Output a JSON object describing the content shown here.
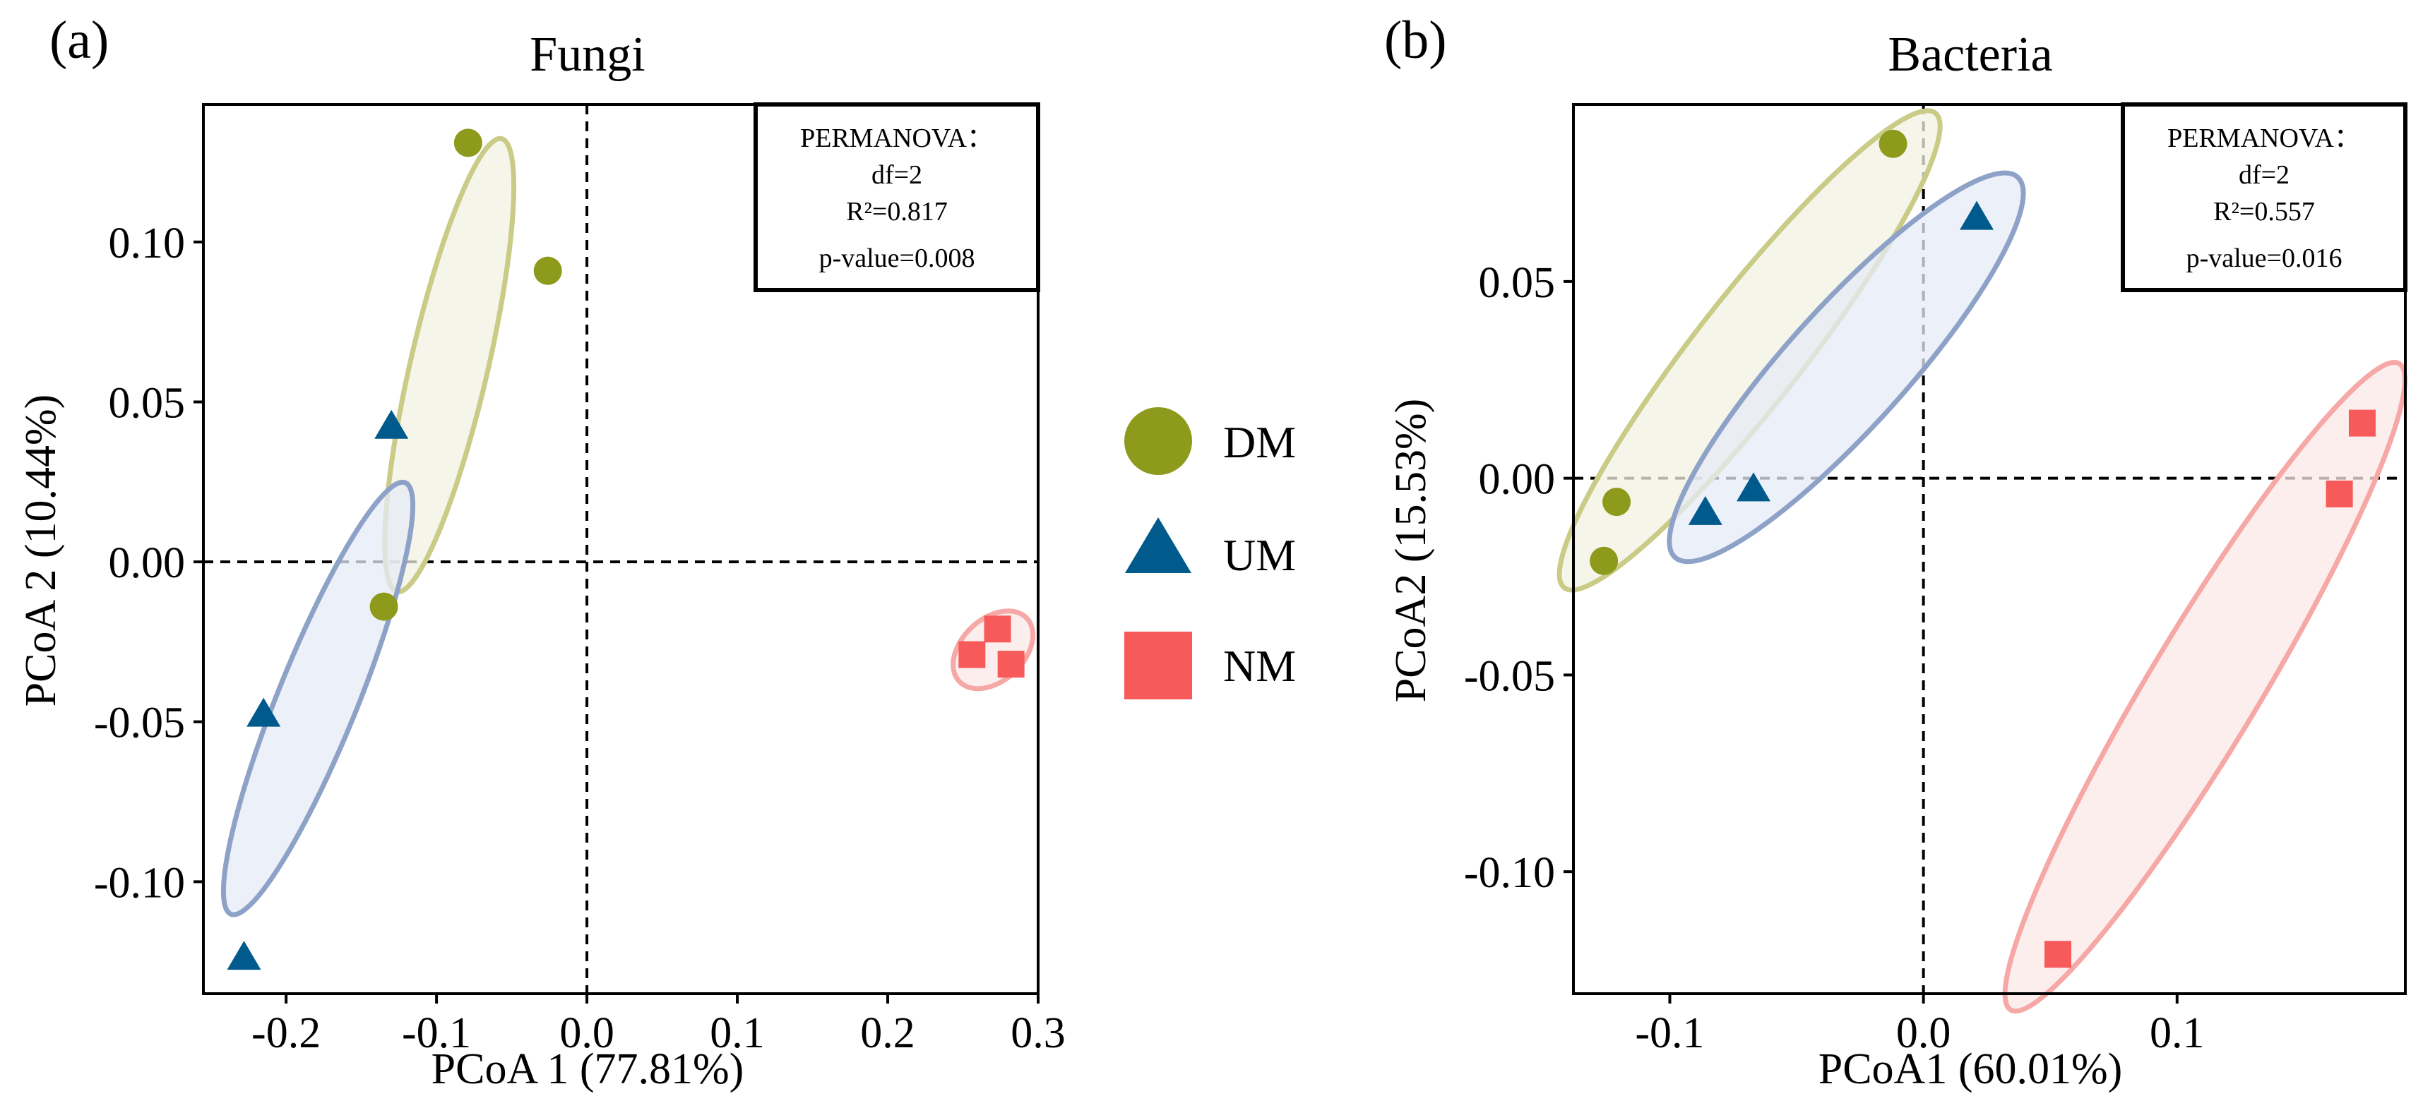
{
  "chart_data": [
    {
      "type": "scatter",
      "panel_label": "(a)",
      "title": "Fungi",
      "xlabel": "PCoA 1 (77.81%)",
      "ylabel": "PCoA 2 (10.44%)",
      "xlim": [
        -0.255,
        0.3
      ],
      "ylim": [
        -0.135,
        0.143
      ],
      "xticks": [
        -0.2,
        -0.1,
        0.0,
        0.1,
        0.2,
        0.3
      ],
      "xtick_labels": [
        "-0.2",
        "-0.1",
        "0.0",
        "0.1",
        "0.2",
        "0.3"
      ],
      "yticks": [
        -0.1,
        -0.05,
        0.0,
        0.05,
        0.1
      ],
      "ytick_labels": [
        "-0.10",
        "-0.05",
        "0.00",
        "0.05",
        "0.10"
      ],
      "reference_lines": {
        "x": 0,
        "y": 0,
        "style": "dashed"
      },
      "series": [
        {
          "name": "DM",
          "color": "#8e9a1b",
          "fill": "#f1f2e2",
          "edge": "#c9cb86",
          "marker": "circle",
          "points": [
            [
              -0.079,
              0.131
            ],
            [
              -0.026,
              0.091
            ],
            [
              -0.135,
              -0.014
            ]
          ],
          "ellipse": {
            "cx": -0.0915,
            "cy": 0.0615,
            "rx": 0.093,
            "ry": 0.0155,
            "angle_deg": 77
          }
        },
        {
          "name": "UM",
          "color": "#005a8c",
          "fill": "#e6ebf5",
          "edge": "#8ea2c8",
          "marker": "triangle",
          "points": [
            [
              -0.13,
              0.042
            ],
            [
              -0.215,
              -0.048
            ],
            [
              -0.228,
              -0.124
            ]
          ],
          "ellipse": {
            "cx": -0.1787,
            "cy": -0.0427,
            "rx": 0.0931,
            "ry": 0.0159,
            "angle_deg": 68
          }
        },
        {
          "name": "NM",
          "color": "#f75a5a",
          "fill": "#fbe8e6",
          "edge": "#f5a8a6",
          "marker": "square",
          "points": [
            [
              0.273,
              -0.021
            ],
            [
              0.256,
              -0.029
            ],
            [
              0.282,
              -0.032
            ]
          ],
          "ellipse": {
            "cx": 0.27,
            "cy": -0.0275,
            "rx": 0.0185,
            "ry": 0.0124,
            "angle_deg": 43
          }
        }
      ],
      "stats_box": {
        "lines": [
          "PERMANOVA：",
          "df=2",
          "R²=0.817",
          "p-value=0.008"
        ],
        "position": "top-right"
      }
    },
    {
      "type": "scatter",
      "panel_label": "(b)",
      "title": "Bacteria",
      "xlabel": "PCoA1 (60.01%)",
      "ylabel": "PCoA2 (15.53%)",
      "xlim": [
        -0.138,
        0.19
      ],
      "ylim": [
        -0.131,
        0.095
      ],
      "xticks": [
        -0.1,
        0.0,
        0.1
      ],
      "xtick_labels": [
        "-0.1",
        "0.0",
        "0.1"
      ],
      "yticks": [
        -0.1,
        -0.05,
        0.0,
        0.05
      ],
      "ytick_labels": [
        "-0.10",
        "-0.05",
        "0.00",
        "0.05"
      ],
      "reference_lines": {
        "x": 0,
        "y": 0,
        "style": "dashed"
      },
      "series": [
        {
          "name": "DM",
          "color": "#8e9a1b",
          "fill": "#f1f2e2",
          "edge": "#c9cb86",
          "marker": "circle",
          "points": [
            [
              -0.012,
              0.085
            ],
            [
              -0.121,
              -0.006
            ],
            [
              -0.126,
              -0.021
            ]
          ],
          "ellipse": {
            "cx": -0.0685,
            "cy": 0.0325,
            "rx": 0.091,
            "ry": 0.0163,
            "angle_deg": 52
          }
        },
        {
          "name": "UM",
          "color": "#005a8c",
          "fill": "#e6ebf5",
          "edge": "#8ea2c8",
          "marker": "triangle",
          "points": [
            [
              0.021,
              0.066
            ],
            [
              -0.067,
              -0.003
            ],
            [
              -0.086,
              -0.009
            ]
          ],
          "ellipse": {
            "cx": -0.0304,
            "cy": 0.0282,
            "rx": 0.0773,
            "ry": 0.0181,
            "angle_deg": 48
          }
        },
        {
          "name": "NM",
          "color": "#f75a5a",
          "fill": "#fbe8e6",
          "edge": "#f5a8a6",
          "marker": "square",
          "points": [
            [
              0.173,
              0.014
            ],
            [
              0.164,
              -0.004
            ],
            [
              0.053,
              -0.121
            ]
          ],
          "ellipse": {
            "cx": 0.111,
            "cy": -0.053,
            "rx": 0.1139,
            "ry": 0.0167,
            "angle_deg": 59
          }
        }
      ],
      "stats_box": {
        "lines": [
          "PERMANOVA：",
          "df=2",
          "R²=0.557",
          "p-value=0.016"
        ],
        "position": "top-right"
      }
    }
  ],
  "legend": {
    "items": [
      {
        "label": "DM",
        "marker": "circle",
        "color": "#8e9a1b"
      },
      {
        "label": "UM",
        "marker": "triangle",
        "color": "#005a8c"
      },
      {
        "label": "NM",
        "marker": "square",
        "color": "#f75a5a"
      }
    ]
  }
}
